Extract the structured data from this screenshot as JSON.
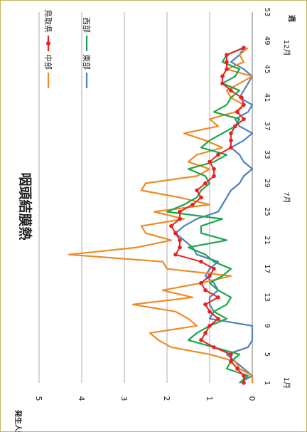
{
  "chart_data": {
    "type": "line",
    "title": "咽頭結膜熱",
    "xlabel": "週",
    "ylabel": "発生人数",
    "ylim": [
      0,
      5
    ],
    "yticks": [
      "0",
      "1",
      "2",
      "3",
      "4",
      "5"
    ],
    "xlim": [
      1,
      53
    ],
    "xticks": [
      "1",
      "5",
      "9",
      "13",
      "17",
      "21",
      "25",
      "29",
      "33",
      "37",
      "41",
      "45",
      "49",
      "53"
    ],
    "month_labels": [
      {
        "text": "1月",
        "week": 1
      },
      {
        "text": "7月",
        "week": 27
      },
      {
        "text": "12月",
        "week": 48
      }
    ],
    "grid": true,
    "legend_position": "top-right",
    "x": [
      1,
      2,
      3,
      4,
      5,
      6,
      7,
      8,
      9,
      10,
      11,
      12,
      13,
      14,
      15,
      16,
      17,
      18,
      19,
      20,
      21,
      22,
      23,
      24,
      25,
      26,
      27,
      28,
      29,
      30,
      31,
      32,
      33,
      34,
      35,
      36,
      37,
      38,
      39,
      40,
      41,
      42,
      43,
      44,
      45,
      46,
      47,
      48
    ],
    "series": [
      {
        "name": "東部",
        "color": "#4f81bd",
        "values": [
          0.3,
          0,
          0.2,
          0.4,
          0.6,
          0.1,
          0,
          0,
          0,
          1.0,
          0.9,
          1.0,
          1.0,
          0.8,
          0.9,
          1.1,
          1.0,
          0.8,
          1.3,
          1.4,
          1.6,
          1.8,
          1.6,
          1.3,
          0.8,
          0.7,
          0.6,
          0.5,
          0.3,
          0.2,
          0,
          0.2,
          0.3,
          0.5,
          0.2,
          0,
          0.3,
          0.4,
          0.1,
          0,
          0.3,
          0.2,
          0.1,
          0,
          0.2,
          0.5,
          0.3,
          0.2
        ]
      },
      {
        "name": "中部",
        "color": "#f08a24",
        "values": [
          0,
          0,
          0.3,
          0.4,
          1.0,
          1.9,
          2.2,
          2.4,
          1.3,
          1.5,
          1.8,
          2.8,
          1.4,
          2.1,
          1.2,
          0.5,
          2.0,
          2.1,
          4.3,
          2.7,
          1.9,
          2.5,
          2.6,
          1.6,
          2.3,
          1.0,
          1.7,
          2.6,
          2.5,
          1.3,
          1.0,
          1.5,
          1.3,
          0.7,
          1.1,
          1.6,
          0.8,
          1.0,
          0.4,
          0.2,
          0.5,
          0.6,
          0.3,
          0,
          0.6,
          0.2,
          0.3,
          0.1
        ]
      },
      {
        "name": "西部",
        "color": "#1aa64a",
        "values": [
          0.3,
          0.1,
          0.6,
          0.5,
          0.3,
          0.9,
          1.5,
          1.3,
          1.0,
          0.6,
          0.9,
          0.6,
          0.5,
          0.8,
          1.0,
          0.7,
          0.5,
          0.9,
          1.1,
          1.5,
          0.6,
          1.2,
          1.2,
          0.7,
          2.0,
          1.6,
          1.3,
          1.2,
          1.0,
          1.1,
          1.5,
          0.9,
          0.6,
          1.2,
          1.0,
          0.7,
          0.4,
          0.3,
          0.9,
          0.6,
          0.5,
          0.3,
          0.7,
          0.4,
          0.3,
          0.7,
          0.6,
          0.2
        ]
      },
      {
        "name": "鳥取県",
        "color": "#e8211f",
        "values": [
          0.2,
          0.2,
          0.35,
          0.5,
          0.5,
          0.9,
          1.2,
          1.1,
          1.0,
          0.8,
          1.0,
          1.1,
          0.8,
          1.1,
          1.2,
          1.0,
          0.9,
          1.2,
          1.8,
          1.7,
          1.7,
          1.8,
          1.9,
          1.7,
          1.7,
          1.4,
          1.2,
          1.3,
          1.1,
          0.9,
          0.9,
          1.0,
          0.8,
          0.5,
          0.5,
          0.5,
          0.4,
          0.2,
          0.35,
          0.2,
          0.25,
          0.5,
          0.7,
          0.7,
          0.6,
          0.6,
          0.6,
          0.2
        ]
      }
    ]
  }
}
